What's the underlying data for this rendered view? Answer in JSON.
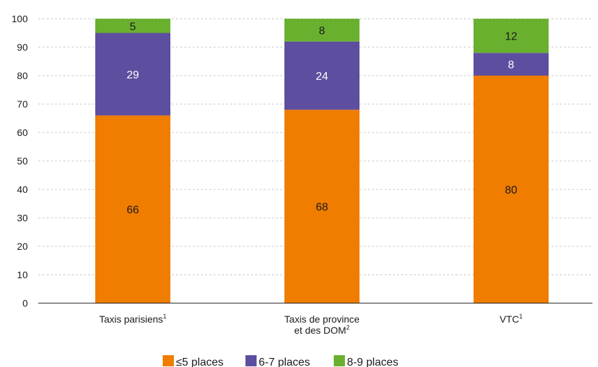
{
  "chart_data": {
    "type": "bar",
    "stacked": true,
    "categories": [
      {
        "label": "Taxis parisiens",
        "sup": "1"
      },
      {
        "label_lines": [
          "Taxis de province",
          "et des DOM"
        ],
        "sup": "2"
      },
      {
        "label": "VTC",
        "sup": "1"
      }
    ],
    "series": [
      {
        "name": "≤5 places",
        "color": "#f07c00",
        "values": [
          66,
          68,
          80
        ],
        "label_color": "#1a1a1a"
      },
      {
        "name": "6-7 places",
        "color": "#5e4ea0",
        "values": [
          29,
          24,
          8
        ],
        "label_color": "#ffffff"
      },
      {
        "name": "8-9 places",
        "color": "#6ab02f",
        "values": [
          5,
          8,
          12
        ],
        "label_color": "#1a1a1a"
      }
    ],
    "ylim": [
      0,
      100
    ],
    "yticks": [
      0,
      10,
      20,
      30,
      40,
      50,
      60,
      70,
      80,
      90,
      100
    ],
    "grid": true,
    "legend": "bottom",
    "title": "",
    "xlabel": "",
    "ylabel": ""
  }
}
